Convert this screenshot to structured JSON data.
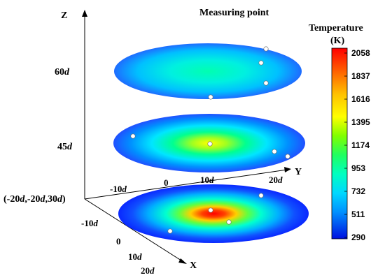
{
  "title": "Measuring point",
  "colorbar": {
    "title_line1": "Temperature",
    "title_line2": "(K)",
    "ticks": [
      "2058",
      "1837",
      "1616",
      "1395",
      "1174",
      "953",
      "732",
      "511",
      "290"
    ],
    "colors": [
      "#ff0000",
      "#ff5a00",
      "#ffb000",
      "#ffff00",
      "#b0ff00",
      "#40ff40",
      "#00e08a",
      "#00ffe0",
      "#00c8ff",
      "#0080ff",
      "#2a3cff",
      "#0000e6"
    ]
  },
  "axes": {
    "z_label": "Z",
    "y_label": "Y",
    "x_label": "X",
    "origin_label": "(-20d,-20d,30d)",
    "plane_labels": [
      {
        "num": "60",
        "unit": "d"
      },
      {
        "num": "45",
        "unit": "d"
      }
    ],
    "y_ticks": [
      {
        "num": "-10",
        "unit": "d"
      },
      {
        "num": "0",
        "unit": ""
      },
      {
        "num": "10",
        "unit": "d"
      },
      {
        "num": "20",
        "unit": "d"
      }
    ],
    "x_ticks": [
      {
        "num": "-10",
        "unit": "d"
      },
      {
        "num": "0",
        "unit": ""
      },
      {
        "num": "10",
        "unit": "d"
      },
      {
        "num": "20",
        "unit": "d"
      }
    ]
  },
  "slices": [
    {
      "height": "60d",
      "peak_color": "#00ffb0",
      "mid_color": "#00e8ff",
      "edge_color": "#1e6cff"
    },
    {
      "height": "45d",
      "peak_color": "#ffff00",
      "mid_color": "#30ff60",
      "edge_color": "#2060ff"
    },
    {
      "height": "30d",
      "peak_color": "#ff1000",
      "mid_color": "#ffd000",
      "edge_color": "#0a28ff"
    }
  ]
}
